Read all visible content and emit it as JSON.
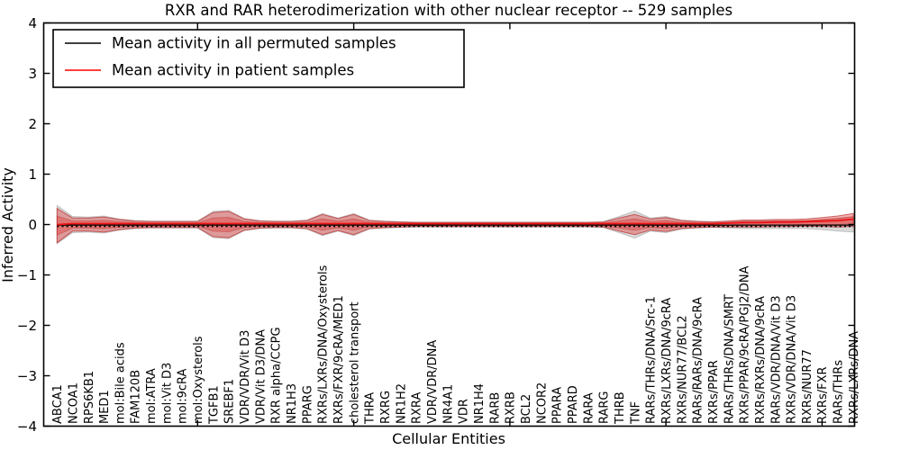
{
  "figure": {
    "title": "RXR and RAR heterodimerization with other nuclear receptor -- 529 samples"
  },
  "chart_data": {
    "type": "line",
    "title": "RXR and RAR heterodimerization with other nuclear receptor -- 529 samples",
    "xlabel": "Cellular Entities",
    "ylabel": "Inferred Activity",
    "ylim": [
      -4,
      4
    ],
    "yticks": [
      -4,
      -3,
      -2,
      -1,
      0,
      1,
      2,
      3,
      4
    ],
    "x_major_tick_indices": [
      10,
      20,
      30,
      40,
      50
    ],
    "grid": false,
    "legend": {
      "position": "upper left",
      "entries": [
        {
          "label": "Mean activity in all permuted samples",
          "color": "#000000"
        },
        {
          "label": "Mean activity in patient samples",
          "color": "#ff0000"
        }
      ]
    },
    "categories": [
      "ABCA1",
      "NCOA1",
      "RPS6KB1",
      "MED1",
      "mol:Bile acids",
      "FAM120B",
      "mol:ATRA",
      "mol:Vit D3",
      "mol:9cRA",
      "mol:Oxysterols",
      "TGFB1",
      "SREBF1",
      "VDR/VDR/Vit D3",
      "VDR/Vit D3/DNA",
      "RXR alpha/CCPG",
      "NR1H3",
      "PPARG",
      "RXRs/LXRs/DNA/Oxysterols",
      "RXRs/FXR/9cRA/MED1",
      "cholesterol transport",
      "THRA",
      "RXRG",
      "NR1H2",
      "RXRA",
      "VDR/VDR/DNA",
      "NR4A1",
      "VDR",
      "NR1H4",
      "RARB",
      "RXRB",
      "BCL2",
      "NCOR2",
      "PPARA",
      "PPARD",
      "RARA",
      "RARG",
      "THRB",
      "TNF",
      "RARs/THRs/DNA/Src-1",
      "RXRs/LXRs/DNA/9cRA",
      "RXRs/NUR77/BCL2",
      "RARs/RARs/DNA/9cRA",
      "RXRs/PPAR",
      "RARs/THRs/DNA/SMRT",
      "RXRs/PPAR/9cRA/PGJ2/DNA",
      "RXRs/RXRs/DNA/9cRA",
      "RARs/VDR/DNA/Vit D3",
      "RXRs/VDR/DNA/Vit D3",
      "RXRs/NUR77",
      "RXRs/FXR",
      "RARs/THRs",
      "RXRs/LXRs/DNA"
    ],
    "series": [
      {
        "name": "Mean activity in all permuted samples",
        "style": "solid-black-with-dotted-overlay",
        "color": "#000000",
        "mean": 0,
        "band_half": [
          0.38,
          0.16,
          0.15,
          0.17,
          0.11,
          0.08,
          0.07,
          0.07,
          0.07,
          0.07,
          0.26,
          0.28,
          0.12,
          0.08,
          0.07,
          0.07,
          0.09,
          0.22,
          0.13,
          0.22,
          0.09,
          0.07,
          0.06,
          0.05,
          0.05,
          0.05,
          0.05,
          0.05,
          0.05,
          0.05,
          0.05,
          0.05,
          0.05,
          0.05,
          0.05,
          0.06,
          0.16,
          0.27,
          0.13,
          0.16,
          0.09,
          0.07,
          0.06,
          0.07,
          0.08,
          0.08,
          0.08,
          0.08,
          0.08,
          0.1,
          0.13,
          0.15
        ],
        "band_color": "rgba(120,120,120,0.28)"
      },
      {
        "name": "Mean activity in patient samples",
        "style": "solid-red",
        "color": "#ee1111",
        "mean": [
          -0.02,
          0,
          0,
          0,
          0,
          0,
          0,
          0,
          0,
          0,
          0,
          0,
          0,
          0,
          0,
          0,
          0,
          0,
          0,
          0,
          0,
          0,
          0,
          0,
          0,
          0,
          0,
          0,
          0,
          0,
          0,
          0,
          0,
          0,
          0,
          0,
          0,
          0,
          0,
          0,
          0,
          0,
          0,
          0.01,
          0.02,
          0.02,
          0.03,
          0.03,
          0.04,
          0.05,
          0.06,
          0.09
        ],
        "band_half": [
          0.34,
          0.13,
          0.13,
          0.15,
          0.1,
          0.07,
          0.06,
          0.06,
          0.06,
          0.06,
          0.24,
          0.26,
          0.11,
          0.07,
          0.06,
          0.06,
          0.08,
          0.2,
          0.12,
          0.2,
          0.08,
          0.06,
          0.05,
          0.04,
          0.04,
          0.04,
          0.04,
          0.04,
          0.04,
          0.04,
          0.04,
          0.04,
          0.04,
          0.04,
          0.04,
          0.05,
          0.13,
          0.2,
          0.11,
          0.14,
          0.08,
          0.06,
          0.05,
          0.06,
          0.07,
          0.07,
          0.07,
          0.07,
          0.07,
          0.09,
          0.11,
          0.13
        ],
        "band_color": "rgba(228,60,60,0.40)"
      }
    ]
  }
}
